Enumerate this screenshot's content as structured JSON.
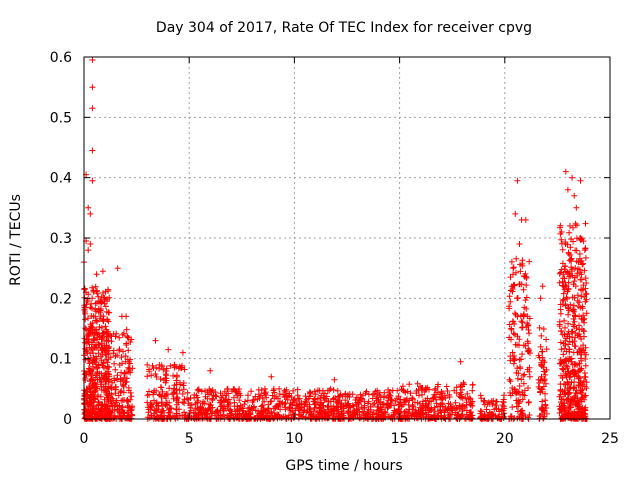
{
  "chart_data": {
    "type": "scatter",
    "title": "Day 304 of 2017, Rate Of TEC Index for receiver cpvg",
    "xlabel": "GPS time / hours",
    "ylabel": "ROTI / TECUs",
    "xlim": [
      0,
      25
    ],
    "ylim": [
      0,
      0.6
    ],
    "x_ticks": [
      0,
      5,
      10,
      15,
      20,
      25
    ],
    "x_tick_labels": [
      "0",
      "5",
      "10",
      "15",
      "20",
      "25"
    ],
    "y_ticks": [
      0,
      0.1,
      0.2,
      0.3,
      0.4,
      0.5,
      0.6
    ],
    "y_tick_labels": [
      "0",
      "0.1",
      "0.2",
      "0.3",
      "0.4",
      "0.5",
      "0.6"
    ],
    "grid": true,
    "marker": "plus",
    "color": "#ff0000",
    "series": [
      {
        "name": "ROTI",
        "highlights": [
          [
            0.4,
            0.595
          ],
          [
            0.4,
            0.55
          ],
          [
            0.4,
            0.515
          ],
          [
            0.4,
            0.445
          ],
          [
            0.4,
            0.395
          ],
          [
            0.1,
            0.405
          ],
          [
            0.2,
            0.35
          ],
          [
            0.3,
            0.34
          ],
          [
            0.1,
            0.295
          ],
          [
            0.3,
            0.29
          ],
          [
            0.2,
            0.28
          ],
          [
            0.0,
            0.26
          ],
          [
            0.9,
            0.245
          ],
          [
            1.6,
            0.25
          ],
          [
            0.6,
            0.24
          ],
          [
            2.0,
            0.17
          ],
          [
            1.8,
            0.17
          ],
          [
            3.4,
            0.13
          ],
          [
            4.0,
            0.115
          ],
          [
            4.7,
            0.11
          ],
          [
            6.0,
            0.08
          ],
          [
            8.9,
            0.07
          ],
          [
            11.9,
            0.065
          ],
          [
            17.9,
            0.095
          ],
          [
            20.6,
            0.395
          ],
          [
            20.5,
            0.34
          ],
          [
            20.8,
            0.33
          ],
          [
            21.0,
            0.33
          ],
          [
            20.7,
            0.29
          ],
          [
            20.4,
            0.25
          ],
          [
            21.8,
            0.22
          ],
          [
            21.7,
            0.2
          ],
          [
            22.9,
            0.41
          ],
          [
            23.2,
            0.4
          ],
          [
            23.6,
            0.395
          ],
          [
            23.0,
            0.38
          ],
          [
            23.3,
            0.37
          ],
          [
            23.4,
            0.35
          ],
          [
            23.1,
            0.32
          ],
          [
            23.6,
            0.3
          ],
          [
            23.8,
            0.28
          ],
          [
            23.5,
            0.26
          ],
          [
            22.8,
            0.24
          ]
        ],
        "clusters": [
          {
            "x_range": [
              0.0,
              1.2
            ],
            "y_range": [
              0.0,
              0.22
            ],
            "count": 480
          },
          {
            "x_range": [
              1.0,
              2.3
            ],
            "y_range": [
              0.0,
              0.15
            ],
            "count": 200
          },
          {
            "x_range": [
              3.0,
              4.8
            ],
            "y_range": [
              0.0,
              0.09
            ],
            "count": 180
          },
          {
            "x_range": [
              4.8,
              10.0
            ],
            "y_range": [
              0.0,
              0.05
            ],
            "count": 420
          },
          {
            "x_range": [
              10.0,
              15.0
            ],
            "y_range": [
              0.0,
              0.05
            ],
            "count": 420
          },
          {
            "x_range": [
              15.0,
              18.5
            ],
            "y_range": [
              0.0,
              0.06
            ],
            "count": 300
          },
          {
            "x_range": [
              18.8,
              20.0
            ],
            "y_range": [
              0.0,
              0.04
            ],
            "count": 90
          },
          {
            "x_range": [
              20.2,
              21.2
            ],
            "y_range": [
              0.0,
              0.27
            ],
            "count": 170
          },
          {
            "x_range": [
              21.6,
              22.0
            ],
            "y_range": [
              0.0,
              0.16
            ],
            "count": 60
          },
          {
            "x_range": [
              22.6,
              23.9
            ],
            "y_range": [
              0.0,
              0.33
            ],
            "count": 480
          }
        ]
      }
    ]
  }
}
